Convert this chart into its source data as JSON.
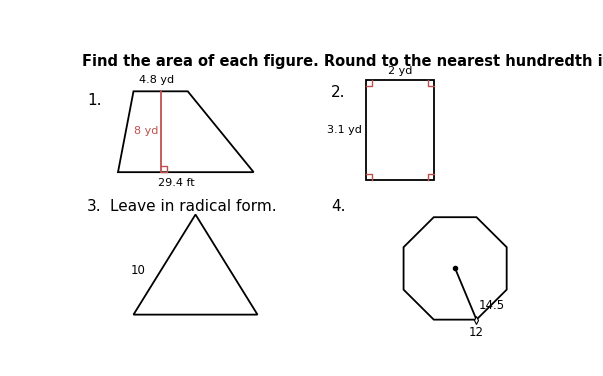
{
  "title": "Find the area of each figure. Round to the nearest hundredth if needed.",
  "title_fontsize": 10.5,
  "bg_color": "#ffffff",
  "shape_color": "#000000",
  "red_color": "#c0504d",
  "fig1": {
    "label": "1.",
    "top_label": "4.8 yd",
    "side_label": "8 yd",
    "bottom_label": "29.4 ft"
  },
  "fig2": {
    "label": "2.",
    "top_label": "2 yd",
    "left_label": "3.1 yd"
  },
  "fig3": {
    "label": "3.",
    "sublabel": "Leave in radical form.",
    "side_label": "10"
  },
  "fig4": {
    "label": "4.",
    "radius_label": "14.5",
    "bottom_label": "12"
  }
}
